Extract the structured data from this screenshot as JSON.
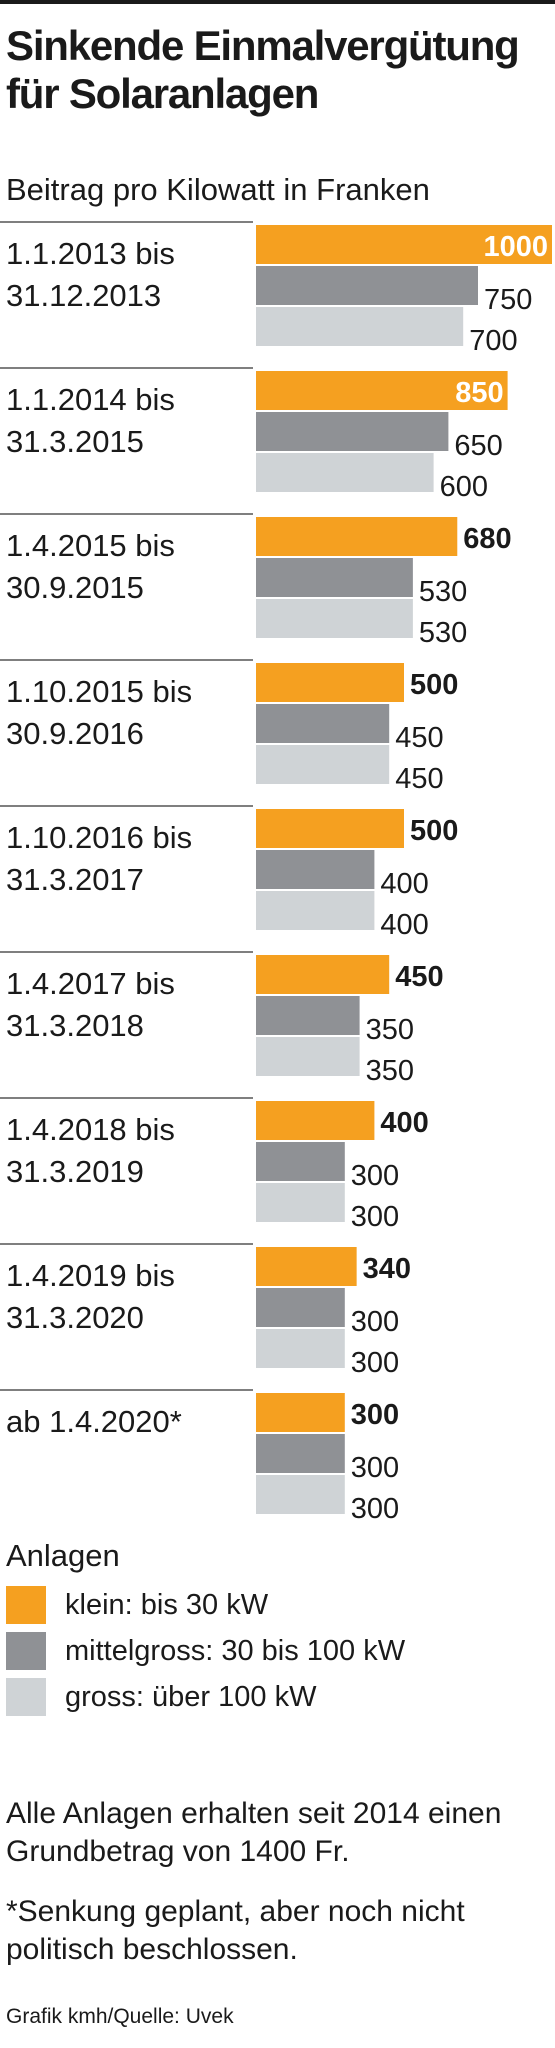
{
  "title": "Sinkende Einmalvergütung für Solaranlagen",
  "subtitle": "Beitrag pro Kilowatt in Franken",
  "colors": {
    "klein": "#f5a020",
    "mittelgross": "#8f9195",
    "gross": "#cfd3d6",
    "rule": "#555555"
  },
  "chart_data": {
    "type": "bar",
    "orientation": "horizontal",
    "title": "Sinkende Einmalvergütung für Solaranlagen",
    "ylabel": "Beitrag pro Kilowatt in Franken",
    "categories": [
      {
        "line1": "1.1.2013  bis",
        "line2": "31.12.2013"
      },
      {
        "line1": "1.1.2014 bis",
        "line2": "31.3.2015"
      },
      {
        "line1": "1.4.2015 bis",
        "line2": "30.9.2015"
      },
      {
        "line1": "1.10.2015 bis",
        "line2": "30.9.2016"
      },
      {
        "line1": "1.10.2016 bis",
        "line2": "31.3.2017"
      },
      {
        "line1": "1.4.2017 bis",
        "line2": "31.3.2018"
      },
      {
        "line1": "1.4.2018 bis",
        "line2": "31.3.2019"
      },
      {
        "line1": "1.4.2019 bis",
        "line2": "31.3.2020"
      },
      {
        "line1": "ab 1.4.2020*",
        "line2": ""
      }
    ],
    "series": [
      {
        "name": "klein: bis 30 kW",
        "values": [
          1000,
          850,
          680,
          500,
          500,
          450,
          400,
          340,
          300
        ]
      },
      {
        "name": "mittelgross: 30 bis 100 kW",
        "values": [
          750,
          650,
          530,
          450,
          400,
          350,
          300,
          300,
          300
        ]
      },
      {
        "name": "gross: über 100 kW",
        "values": [
          700,
          600,
          530,
          450,
          400,
          350,
          300,
          300,
          300
        ]
      }
    ],
    "legend_title": "Anlagen",
    "legend_position": "bottom"
  },
  "notes": {
    "note1": "Alle Anlagen erhalten seit 2014 einen Grundbetrag von 1400 Fr.",
    "note2": "*Senkung geplant, aber noch nicht politisch beschlossen."
  },
  "source": "Grafik kmh/Quelle: Uvek"
}
